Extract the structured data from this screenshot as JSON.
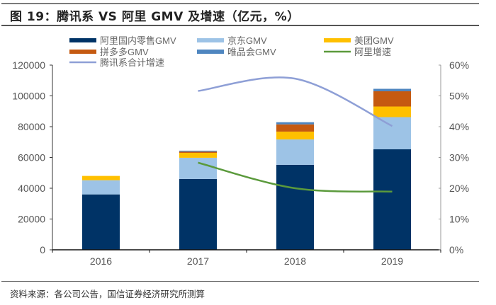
{
  "title": "图 19：腾讯系 VS 阿里 GMV 及增速（亿元，%）",
  "source": "资料来源：各公司公告，国信证券经济研究所测算",
  "chart_data": {
    "type": "bar",
    "stacked": true,
    "title": "图 19：腾讯系 VS 阿里 GMV 及增速（亿元，%）",
    "xlabel": "",
    "ylabel": "",
    "categories": [
      "2016",
      "2017",
      "2018",
      "2019"
    ],
    "ylim": [
      0,
      120000
    ],
    "y_ticks": [
      "0",
      "20000",
      "40000",
      "60000",
      "80000",
      "100000",
      "120000"
    ],
    "y2lim": [
      0,
      0.6
    ],
    "y2_ticks": [
      "0%",
      "10%",
      "20%",
      "30%",
      "40%",
      "50%",
      "60%"
    ],
    "grid": false,
    "legend_position": "top",
    "series": [
      {
        "name": "阿里国内零售GMV",
        "type": "bar",
        "axis": "left",
        "color": "#003366",
        "values": [
          36000,
          46000,
          55200,
          65300
        ]
      },
      {
        "name": "京东GMV",
        "type": "bar",
        "axis": "left",
        "color": "#9dc3e6",
        "values": [
          9200,
          13800,
          16500,
          20900
        ]
      },
      {
        "name": "美团GMV",
        "type": "bar",
        "axis": "left",
        "color": "#ffc000",
        "values": [
          2800,
          3200,
          5100,
          6900
        ]
      },
      {
        "name": "拼多多GMV",
        "type": "bar",
        "axis": "left",
        "color": "#c55a11",
        "values": [
          0,
          800,
          4700,
          9900
        ]
      },
      {
        "name": "唯品会GMV",
        "type": "bar",
        "axis": "left",
        "color": "#4f86c0",
        "values": [
          0,
          600,
          1400,
          1600
        ]
      },
      {
        "name": "阿里增速",
        "type": "line",
        "axis": "right",
        "color": "#5b9a3c",
        "values": [
          null,
          0.283,
          0.2,
          0.189
        ]
      },
      {
        "name": "腾讯系合计增速",
        "type": "line",
        "axis": "right",
        "color": "#8e9fd6",
        "values": [
          null,
          0.516,
          0.556,
          0.402
        ]
      }
    ]
  }
}
